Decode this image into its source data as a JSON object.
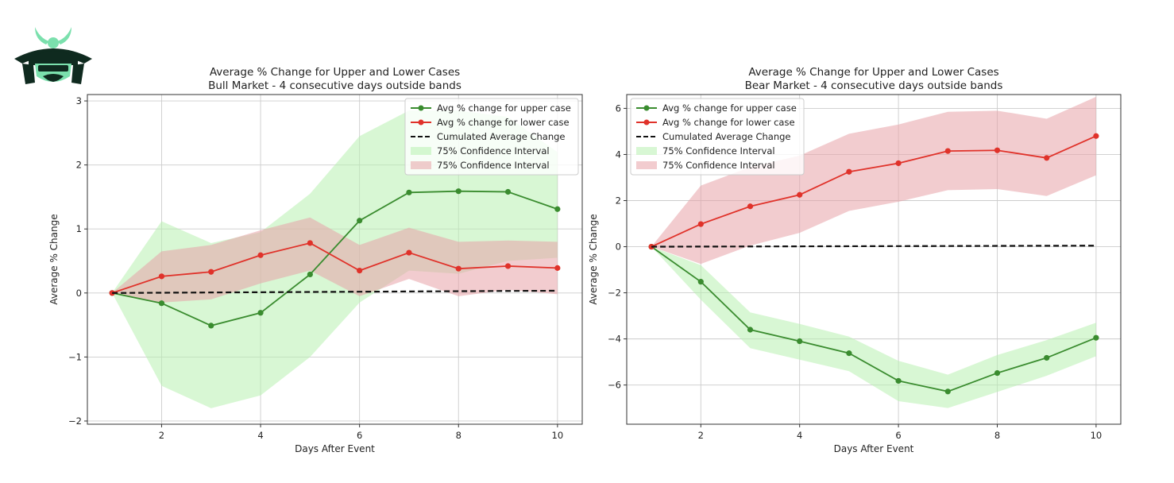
{
  "chart_data": [
    {
      "type": "line",
      "title": "Average % Change for Upper and Lower Cases",
      "subtitle": "Bull Market - 4 consecutive days outside bands",
      "xlabel": "Days After Event",
      "ylabel": "Average % Change",
      "xlim": [
        0.5,
        10.5
      ],
      "ylim": [
        -2.05,
        3.1
      ],
      "xticks": [
        2,
        4,
        6,
        8,
        10
      ],
      "yticks": [
        -2,
        -1,
        0,
        1,
        2,
        3
      ],
      "ytick_labels": [
        "−2",
        "−1",
        "0",
        "1",
        "2",
        "3"
      ],
      "grid": true,
      "legend_position": "top-right",
      "x": [
        1,
        2,
        3,
        4,
        5,
        6,
        7,
        8,
        9,
        10
      ],
      "series": [
        {
          "name": "Avg % change for upper case",
          "color": "#3a8c2f",
          "marker": "circle",
          "values": [
            0,
            -0.16,
            -0.51,
            -0.31,
            0.29,
            1.13,
            1.57,
            1.59,
            1.58,
            1.31
          ]
        },
        {
          "name": "Avg % change for lower case",
          "color": "#e0322a",
          "marker": "circle",
          "values": [
            0,
            0.26,
            0.33,
            0.59,
            0.78,
            0.35,
            0.63,
            0.38,
            0.42,
            0.39
          ]
        },
        {
          "name": "Cumulated Average Change",
          "color": "#111111",
          "dash": true,
          "values": [
            0,
            0.004,
            0.008,
            0.012,
            0.016,
            0.02,
            0.024,
            0.028,
            0.032,
            0.035
          ]
        }
      ],
      "bands": [
        {
          "name": "75% Confidence Interval",
          "color": "#b8f0b0",
          "lower": [
            0,
            -1.45,
            -1.8,
            -1.6,
            -1.0,
            -0.15,
            0.35,
            0.3,
            0.5,
            0.55
          ],
          "upper": [
            0,
            1.12,
            0.78,
            0.95,
            1.55,
            2.45,
            2.85,
            2.85,
            2.75,
            2.2
          ]
        },
        {
          "name": "75% Confidence Interval",
          "color": "#e8a3a8",
          "lower": [
            0,
            -0.15,
            -0.1,
            0.15,
            0.35,
            -0.05,
            0.22,
            -0.05,
            0.05,
            -0.02
          ],
          "upper": [
            0,
            0.65,
            0.75,
            0.98,
            1.18,
            0.75,
            1.02,
            0.8,
            0.82,
            0.8
          ]
        }
      ]
    },
    {
      "type": "line",
      "title": "Average % Change for Upper and Lower Cases",
      "subtitle": "Bear Market - 4 consecutive days outside bands",
      "xlabel": "Days After Event",
      "ylabel": "Average % Change",
      "xlim": [
        0.5,
        10.5
      ],
      "ylim": [
        -7.7,
        6.6
      ],
      "xticks": [
        2,
        4,
        6,
        8,
        10
      ],
      "yticks": [
        -6,
        -4,
        -2,
        0,
        2,
        4,
        6
      ],
      "ytick_labels": [
        "−6",
        "−4",
        "−2",
        "0",
        "2",
        "4",
        "6"
      ],
      "grid": true,
      "legend_position": "top-left",
      "x": [
        1,
        2,
        3,
        4,
        5,
        6,
        7,
        8,
        9,
        10
      ],
      "series": [
        {
          "name": "Avg % change for upper case",
          "color": "#3a8c2f",
          "marker": "circle",
          "values": [
            0,
            -1.52,
            -3.6,
            -4.1,
            -4.62,
            -5.82,
            -6.28,
            -5.48,
            -4.82,
            -3.95
          ]
        },
        {
          "name": "Avg % change for lower case",
          "color": "#e0322a",
          "marker": "circle",
          "values": [
            0,
            0.98,
            1.75,
            2.25,
            3.25,
            3.62,
            4.15,
            4.18,
            3.85,
            4.8
          ]
        },
        {
          "name": "Cumulated Average Change",
          "color": "#111111",
          "dash": true,
          "values": [
            0,
            0.005,
            0.01,
            0.015,
            0.02,
            0.025,
            0.03,
            0.035,
            0.04,
            0.045
          ]
        }
      ],
      "bands": [
        {
          "name": "75% Confidence Interval",
          "color": "#b8f0b0",
          "lower": [
            0,
            -2.3,
            -4.4,
            -4.9,
            -5.4,
            -6.7,
            -7.0,
            -6.3,
            -5.6,
            -4.75
          ],
          "upper": [
            0,
            -0.8,
            -2.85,
            -3.35,
            -3.9,
            -4.95,
            -5.55,
            -4.7,
            -4.05,
            -3.3
          ]
        },
        {
          "name": "75% Confidence Interval",
          "color": "#e8a3a8",
          "lower": [
            0,
            -0.75,
            0.05,
            0.6,
            1.55,
            1.95,
            2.45,
            2.5,
            2.2,
            3.1
          ],
          "upper": [
            0,
            2.65,
            3.45,
            3.95,
            4.9,
            5.3,
            5.85,
            5.9,
            5.55,
            6.5
          ]
        }
      ]
    }
  ],
  "logo": {
    "name": "samurai-helmet-logo"
  }
}
